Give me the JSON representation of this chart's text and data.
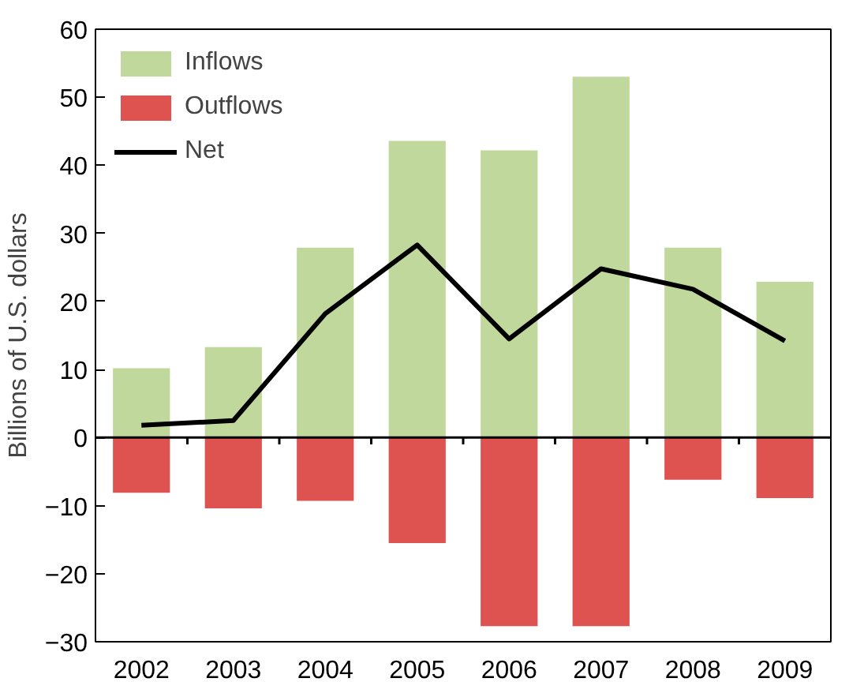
{
  "chart_data": {
    "type": "bar",
    "ylabel": "Billions of U.S. dollars",
    "categories": [
      "2002",
      "2003",
      "2004",
      "2005",
      "2006",
      "2007",
      "2008",
      "2009"
    ],
    "series": [
      {
        "name": "Inflows",
        "color": "#c0d89b",
        "values": [
          10.2,
          13.3,
          27.9,
          43.6,
          42.2,
          53,
          27.9,
          22.9
        ]
      },
      {
        "name": "Outflows",
        "color": "#de5250",
        "values": [
          -8.1,
          -10.4,
          -9.3,
          -15.5,
          -27.7,
          -27.7,
          -6.2,
          -8.9
        ]
      },
      {
        "name": "Net",
        "type": "line",
        "color": "#000000",
        "values": [
          1.8,
          2.5,
          18.2,
          28.3,
          14.5,
          24.8,
          21.8,
          14.2
        ]
      }
    ],
    "ylim": [
      -30,
      60
    ],
    "yticks": [
      -30,
      -20,
      -10,
      0,
      10,
      20,
      30,
      40,
      50,
      60
    ],
    "ref_lines": [
      {
        "axis": "y",
        "value": 0,
        "color": "#000000"
      }
    ],
    "stacked": true,
    "grid": false,
    "legend": "top left"
  }
}
